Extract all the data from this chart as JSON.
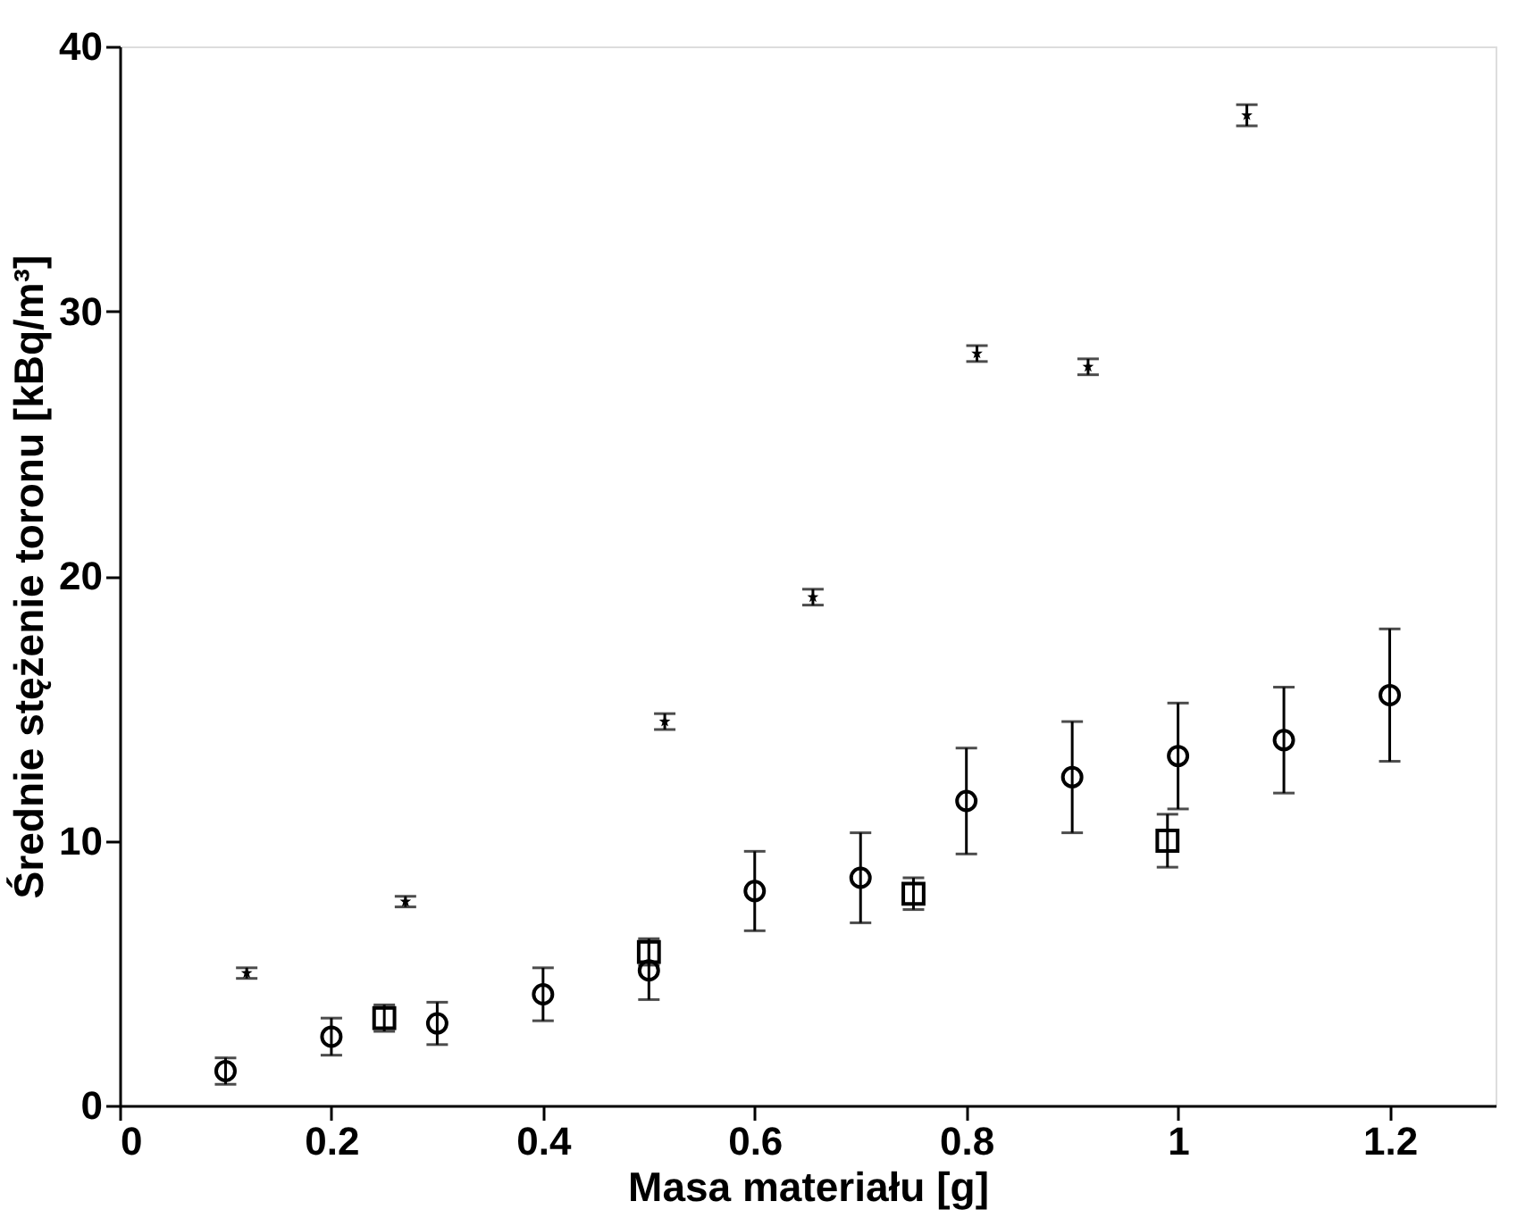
{
  "chart_data": {
    "type": "scatter",
    "xlabel": "Masa materiału [g]",
    "ylabel": "Średnie stężenie toronu [kBq/m³]",
    "xlim": [
      0,
      1.3
    ],
    "xticks": [
      0,
      0.2,
      0.4,
      0.6,
      0.8,
      1,
      1.2
    ],
    "ylim": [
      0,
      40
    ],
    "yticks": [
      0,
      10,
      20,
      30,
      40
    ],
    "grid": false,
    "series": [
      {
        "color": "#000000",
        "marker": "circle",
        "x": [
          0.1,
          0.2,
          0.3,
          0.4,
          0.5,
          0.6,
          0.7,
          0.8,
          0.9,
          1.0,
          1.1,
          1.2
        ],
        "values": [
          1.3,
          2.6,
          3.1,
          4.2,
          5.1,
          8.1,
          8.6,
          11.5,
          12.4,
          13.2,
          13.8,
          15.5
        ],
        "errors": [
          0.5,
          0.7,
          0.8,
          1.0,
          1.1,
          1.5,
          1.7,
          2.0,
          2.1,
          2.0,
          2.0,
          2.5
        ]
      },
      {
        "color": "#000000",
        "marker": "star",
        "x": [
          0.12,
          0.27,
          0.515,
          0.655,
          0.81,
          0.915,
          1.065
        ],
        "values": [
          5.0,
          7.7,
          14.5,
          19.2,
          28.4,
          27.9,
          37.4
        ],
        "errors": [
          0.2,
          0.2,
          0.3,
          0.3,
          0.3,
          0.3,
          0.4
        ]
      },
      {
        "color": "#000000",
        "marker": "square",
        "x": [
          0.25,
          0.5,
          0.75,
          0.99
        ],
        "values": [
          3.3,
          5.8,
          8.0,
          10.0
        ],
        "errors": [
          0.5,
          0.5,
          0.6,
          1.0
        ]
      }
    ]
  }
}
